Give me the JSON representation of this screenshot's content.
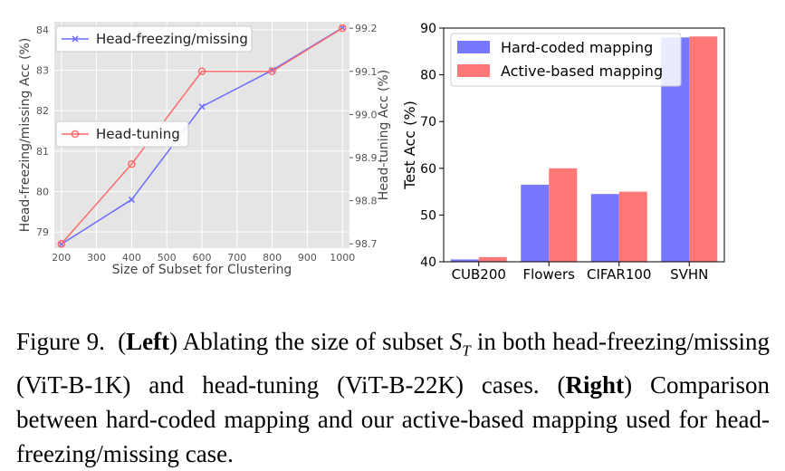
{
  "chart_data": [
    {
      "type": "line",
      "xlabel": "Size of Subset for Clustering",
      "ylabel_left": "Head-freezing/missing Acc (%)",
      "ylabel_right": "Head-tuning Acc (%)",
      "x_ticks": [
        "200",
        "300",
        "400",
        "500",
        "600",
        "700",
        "800",
        "900",
        "1000"
      ],
      "xlim": [
        180,
        1020
      ],
      "y_left_ticks": [
        "79",
        "80",
        "81",
        "82",
        "83",
        "84"
      ],
      "y_left_lim": [
        78.6,
        84.2
      ],
      "y_right_ticks": [
        "98.7",
        "98.8",
        "98.9",
        "99.0",
        "99.1",
        "99.2"
      ],
      "y_right_lim": [
        98.69,
        99.215
      ],
      "grid": true,
      "background": "#e5e5e5",
      "series": [
        {
          "name": "Head-freezing/missing",
          "axis": "left",
          "marker": "x",
          "color": "#6b6bff",
          "x": [
            200,
            400,
            600,
            800,
            1000
          ],
          "values": [
            78.7,
            79.8,
            82.1,
            83.0,
            84.05
          ]
        },
        {
          "name": "Head-tuning",
          "axis": "right",
          "marker": "circle",
          "color": "#ff6b6b",
          "x": [
            200,
            400,
            600,
            800,
            1000
          ],
          "values": [
            98.7,
            98.885,
            99.1,
            99.1,
            99.2
          ]
        }
      ],
      "legend_placement": [
        "top-left",
        "center-left"
      ]
    },
    {
      "type": "bar",
      "ylabel": "Test Acc (%)",
      "categories": [
        "CUB200",
        "Flowers",
        "CIFAR100",
        "SVHN"
      ],
      "y_ticks": [
        "40",
        "50",
        "60",
        "70",
        "80",
        "90"
      ],
      "ylim": [
        40,
        90
      ],
      "grid": false,
      "legend_placement": "top-left",
      "series": [
        {
          "name": "Hard-coded mapping",
          "color": "#7878ff",
          "values": [
            40.5,
            56.5,
            54.5,
            88.0
          ]
        },
        {
          "name": "Active-based mapping",
          "color": "#ff7878",
          "values": [
            41.0,
            60.0,
            55.0,
            88.2
          ]
        }
      ]
    }
  ],
  "caption": {
    "figure_label": "Figure 9.",
    "left_label": "Left",
    "left_text_1": " Ablating the size of subset ",
    "symbol_main": "S",
    "symbol_sub": "T",
    "left_text_2": " in both head-freezing/missing (ViT-B-1K) and head-tuning (ViT-B-22K) cases.",
    "right_label": "Right",
    "right_text": " Comparison between hard-coded mapping and our active-based mapping used for head-freezing/missing case."
  }
}
